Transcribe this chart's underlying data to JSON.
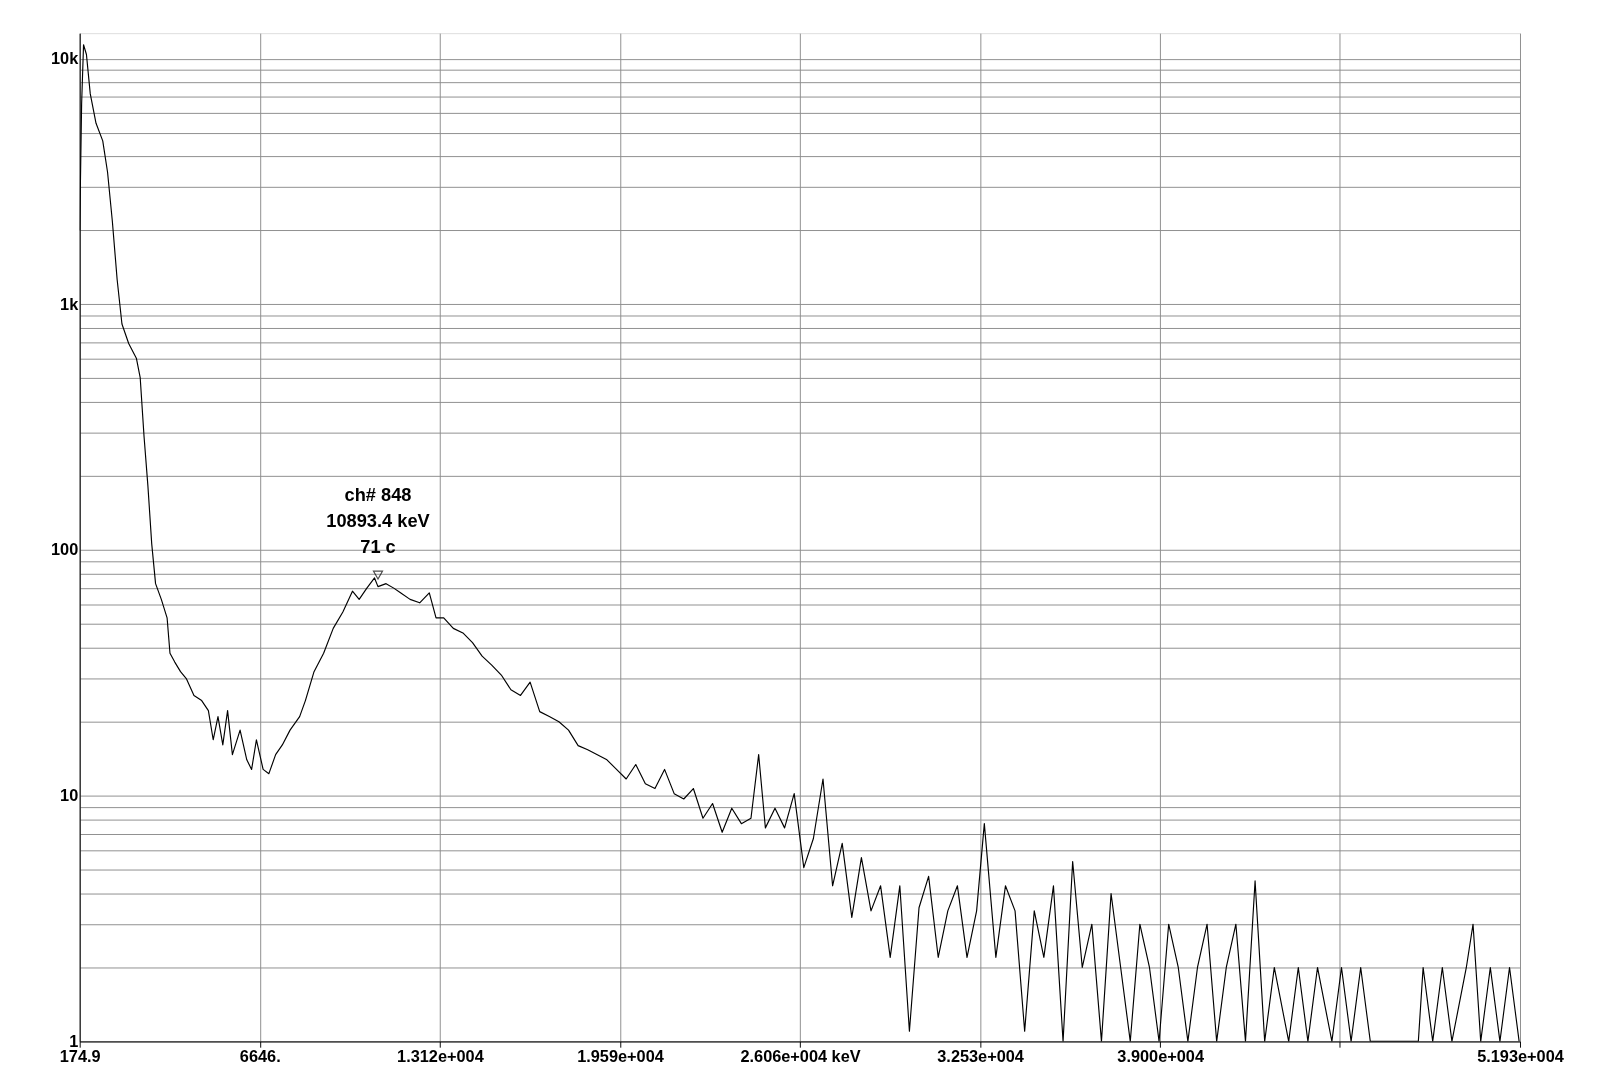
{
  "chart_data": {
    "type": "line",
    "marker": "none",
    "line_style": "solid",
    "grid": true,
    "log": "y",
    "xlim": [
      174.9,
      51930
    ],
    "ylim": [
      1,
      12700
    ],
    "xticks": [
      174.9,
      {
        "value": 6646,
        "label": "6646."
      },
      {
        "value": 13120,
        "label": "1.312e+004"
      },
      {
        "value": 19590,
        "label": "1.959e+004"
      },
      {
        "value": 26060,
        "label": "2.606e+004 keV"
      },
      {
        "value": 32530,
        "label": "3.253e+004"
      },
      {
        "value": 39000,
        "label": "3.900e+004"
      },
      {
        "value": 45460,
        "label": null
      },
      {
        "value": 51930,
        "label": "5.193e+004"
      }
    ],
    "yticks": [
      1,
      {
        "value": 2,
        "label": null
      },
      {
        "value": 3,
        "label": null
      },
      {
        "value": 4,
        "label": null
      },
      {
        "value": 5,
        "label": null
      },
      {
        "value": 6,
        "label": null
      },
      {
        "value": 7,
        "label": null
      },
      {
        "value": 8,
        "label": null
      },
      {
        "value": 9,
        "label": null
      },
      10,
      {
        "value": 20,
        "label": null
      },
      {
        "value": 30,
        "label": null
      },
      {
        "value": 40,
        "label": null
      },
      {
        "value": 50,
        "label": null
      },
      {
        "value": 60,
        "label": null
      },
      {
        "value": 70,
        "label": null
      },
      {
        "value": 80,
        "label": null
      },
      {
        "value": 90,
        "label": null
      },
      100,
      {
        "value": 200,
        "label": null
      },
      {
        "value": 300,
        "label": null
      },
      {
        "value": 400,
        "label": null
      },
      {
        "value": 500,
        "label": null
      },
      {
        "value": 600,
        "label": null
      },
      {
        "value": 700,
        "label": null
      },
      {
        "value": 800,
        "label": null
      },
      {
        "value": 900,
        "label": null
      },
      {
        "value": 1000,
        "label": "1k"
      },
      {
        "value": 2000,
        "label": null
      },
      {
        "value": 3000,
        "label": null
      },
      {
        "value": 4000,
        "label": null
      },
      {
        "value": 5000,
        "label": null
      },
      {
        "value": 6000,
        "label": null
      },
      {
        "value": 7000,
        "label": null
      },
      {
        "value": 8000,
        "label": null
      },
      {
        "value": 9000,
        "label": null
      },
      {
        "value": 10000,
        "label": "10k"
      }
    ],
    "annotations": [
      {
        "text": "ch# 848\n10893.4 keV\n71 c",
        "x": 10893.4,
        "y": 71
      }
    ],
    "series": [
      {
        "color": "#000000",
        "x": [
          175,
          244,
          313,
          417,
          555,
          762,
          1003,
          1176,
          1348,
          1521,
          1693,
          1935,
          2211,
          2349,
          2487,
          2625,
          2763,
          2901,
          3108,
          3315,
          3419,
          3591,
          3798,
          4005,
          4281,
          4558,
          4799,
          4972,
          5144,
          5317,
          5489,
          5662,
          5938,
          6179,
          6352,
          6525,
          6766,
          6973,
          7215,
          7456,
          7733,
          8078,
          8285,
          8595,
          8940,
          9285,
          9631,
          9976,
          10217,
          10493,
          10769,
          10893.4,
          11184,
          11460,
          11702,
          12047,
          12392,
          12737,
          12979,
          13255,
          13600,
          13945,
          14290,
          14635,
          14980,
          15325,
          15670,
          16015,
          16360,
          16705,
          17050,
          17395,
          17740,
          18085,
          18430,
          18775,
          19120,
          19465,
          19811,
          20156,
          20501,
          20846,
          21191,
          21536,
          21881,
          22226,
          22571,
          22916,
          23261,
          23606,
          23951,
          24296,
          24572,
          24814,
          25159,
          25504,
          25849,
          26194,
          26539,
          26884,
          27229,
          27574,
          27919,
          28264,
          28609,
          28954,
          29299,
          29644,
          29989,
          30334,
          30679,
          31024,
          31369,
          31714,
          32059,
          32404,
          32681,
          33095,
          33440,
          33785,
          34130,
          34475,
          34820,
          35165,
          35510,
          35855,
          36200,
          36545,
          36890,
          37235,
          37580,
          37925,
          38270,
          38615,
          38960,
          39305,
          39650,
          39995,
          40340,
          40685,
          41030,
          41375,
          41720,
          42065,
          42410,
          42755,
          43100,
          43618,
          43963,
          44308,
          44653,
          45170,
          45515,
          45860,
          46205,
          46550,
          47413,
          48276,
          48448,
          48793,
          49138,
          49483,
          50001,
          50242,
          50518,
          50863,
          51208,
          51553,
          51898
        ],
        "values": [
          2000,
          6560,
          11400,
          10400,
          7190,
          5460,
          4630,
          3450,
          2180,
          1260,
          832,
          693,
          604,
          503,
          290,
          183,
          106,
          73,
          63,
          53,
          38,
          35,
          32,
          30,
          25.6,
          24.4,
          22.2,
          16.9,
          21,
          16.1,
          22.2,
          14.7,
          18.5,
          14,
          12.8,
          16.9,
          12.8,
          12.3,
          14.7,
          16.1,
          18.5,
          21,
          24.4,
          32,
          38,
          48,
          56,
          68,
          63,
          70,
          77,
          71,
          73,
          70,
          67,
          63,
          61,
          67,
          53,
          53,
          48,
          46,
          42,
          37,
          34,
          31,
          27,
          25.6,
          29,
          22,
          21,
          20,
          18.5,
          16,
          15.4,
          14.7,
          14,
          12.8,
          11.7,
          13.4,
          11.2,
          10.7,
          12.8,
          10.2,
          9.7,
          10.7,
          8.1,
          9.3,
          7.1,
          8.9,
          7.7,
          8.1,
          14.7,
          7.4,
          8.9,
          7.4,
          10.2,
          5.1,
          6.7,
          11.7,
          4.3,
          6.4,
          3.2,
          5.6,
          3.4,
          4.3,
          2.2,
          4.3,
          1.1,
          3.5,
          4.7,
          2.2,
          3.4,
          4.3,
          2.2,
          3.4,
          7.7,
          2.2,
          4.3,
          3.4,
          1.1,
          3.4,
          2.2,
          4.3,
          1,
          5.4,
          2,
          3,
          1,
          4,
          2,
          1,
          3,
          2,
          1,
          3,
          2,
          1,
          2,
          3,
          1,
          2,
          3,
          1,
          4.5,
          1,
          2,
          1,
          2,
          1,
          2,
          1,
          2,
          1,
          2,
          1,
          1,
          1,
          2,
          1,
          2,
          1,
          2,
          3,
          1,
          2,
          1,
          2,
          1
        ]
      }
    ]
  }
}
